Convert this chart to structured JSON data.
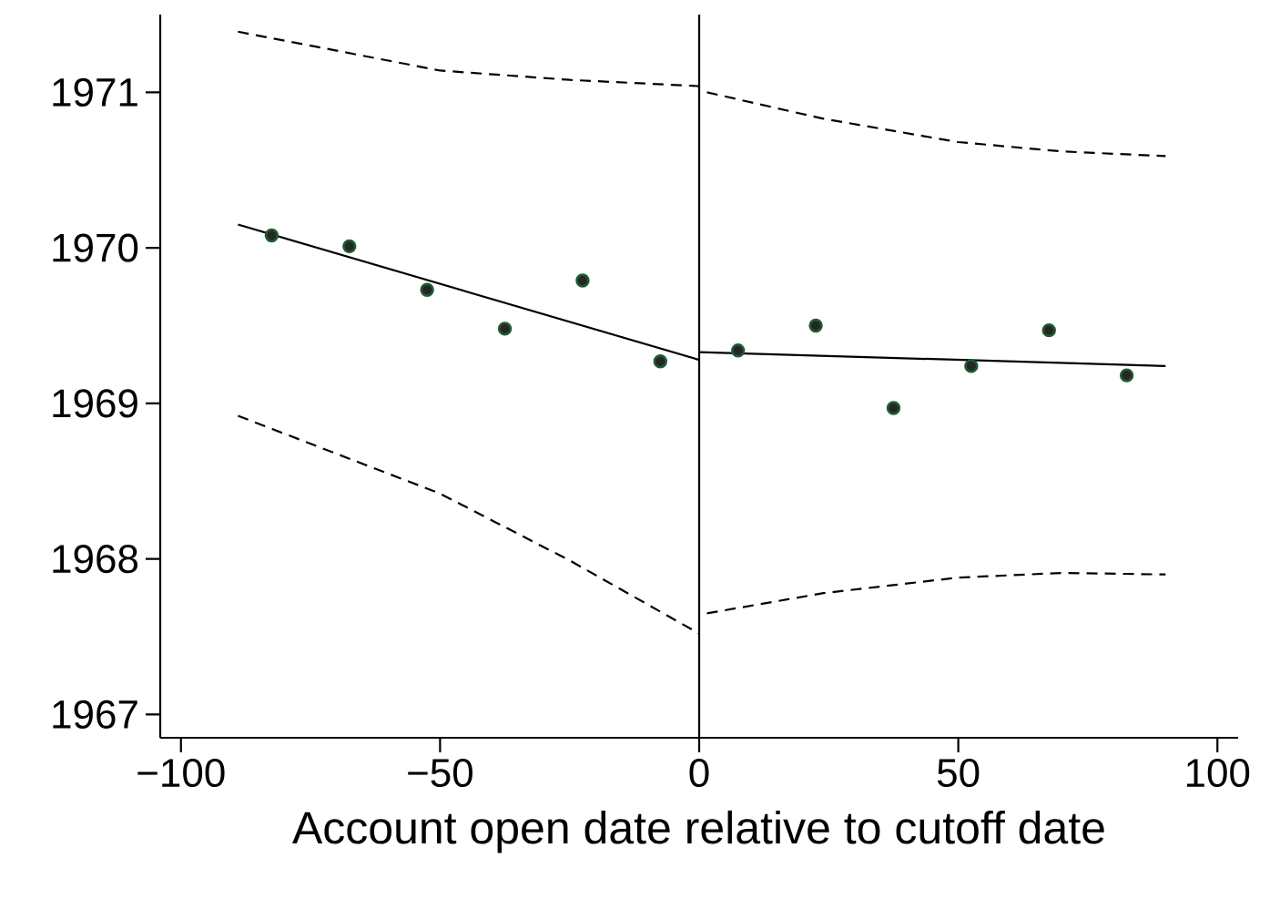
{
  "chart_data": {
    "type": "scatter",
    "xlabel": "Account open date relative to cutoff date",
    "xlim": [
      -104,
      104
    ],
    "ylim": [
      1966.85,
      1971.5
    ],
    "xticks": [
      {
        "value": -100,
        "label": "−100"
      },
      {
        "value": -50,
        "label": "−50"
      },
      0,
      50,
      100
    ],
    "yticks": [
      1967,
      1968,
      1969,
      1970,
      1971
    ],
    "marker": "circle",
    "ref_lines": [
      {
        "axis": "x",
        "value": 0,
        "color": "#000000"
      }
    ],
    "series": [
      {
        "color": "#1e5b32",
        "x": [
          -82.5,
          -67.5,
          -52.5,
          -37.5,
          -22.5,
          -7.5,
          7.5,
          22.5,
          37.5,
          52.5,
          67.5,
          82.5
        ],
        "values": [
          1970.08,
          1970.01,
          1969.73,
          1969.48,
          1969.79,
          1969.27,
          1969.34,
          1969.5,
          1968.97,
          1969.24,
          1969.47,
          1969.18
        ]
      },
      {
        "type": "line",
        "color": "#000000",
        "line_style": "solid",
        "marker": "none",
        "x": [
          -89,
          0
        ],
        "values": [
          1970.15,
          1969.28
        ]
      },
      {
        "type": "line",
        "color": "#000000",
        "line_style": "solid",
        "marker": "none",
        "x": [
          0,
          90
        ],
        "values": [
          1969.33,
          1969.24
        ]
      },
      {
        "type": "line",
        "color": "#000000",
        "line_style": "dashed",
        "marker": "none",
        "x": [
          -89,
          -50,
          -25,
          0
        ],
        "values": [
          1971.39,
          1971.14,
          1971.08,
          1971.04
        ]
      },
      {
        "type": "line",
        "color": "#000000",
        "line_style": "dashed",
        "marker": "none",
        "x": [
          -89,
          -50,
          -25,
          0
        ],
        "values": [
          1968.92,
          1968.42,
          1967.99,
          1967.52
        ]
      },
      {
        "type": "line",
        "color": "#000000",
        "line_style": "dashed",
        "marker": "none",
        "x": [
          1.5,
          24,
          50,
          70,
          90
        ],
        "values": [
          1971.0,
          1970.83,
          1970.68,
          1970.62,
          1970.59
        ]
      },
      {
        "type": "line",
        "color": "#000000",
        "line_style": "dashed",
        "marker": "none",
        "x": [
          1.5,
          24,
          50,
          70,
          90
        ],
        "values": [
          1967.65,
          1967.78,
          1967.88,
          1967.91,
          1967.9
        ]
      }
    ]
  }
}
